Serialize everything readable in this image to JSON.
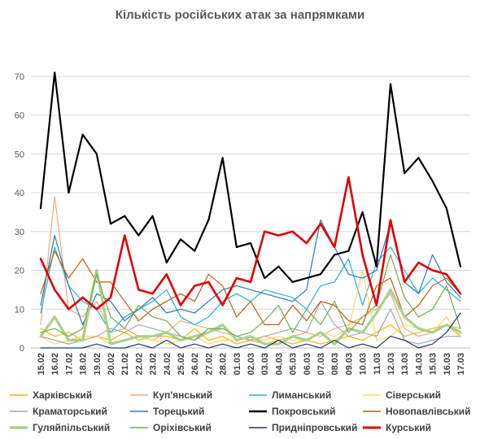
{
  "chart_data": {
    "type": "line",
    "title": "Кількість російських атак за напрямками",
    "xlabel": "",
    "ylabel": "",
    "ylim": [
      0,
      75
    ],
    "yticks": [
      0,
      10,
      20,
      30,
      40,
      50,
      60,
      70
    ],
    "grid": true,
    "legend": "bottom",
    "categories": [
      "15.02",
      "16.02",
      "17.02",
      "18.02",
      "19.02",
      "20.02",
      "21.02",
      "22.02",
      "23.02",
      "24.02",
      "25.02",
      "26.02",
      "27.02",
      "28.02",
      "01.03",
      "02.03",
      "03.03",
      "04.03",
      "05.03",
      "06.03",
      "07.03",
      "08.03",
      "09.03",
      "10.03",
      "11.03",
      "12.03",
      "13.03",
      "14.03",
      "15.03",
      "16.03",
      "17.03"
    ],
    "x_tick_labels": [
      "15.02",
      "16.02",
      "17.02",
      "18.02",
      "19.02",
      "20.02",
      "21.02",
      "22.02",
      "23.02",
      "24.02",
      "25.02",
      "26.02",
      "27.02",
      "28.02",
      "01.03",
      "02.03",
      "03.03",
      "04.03",
      "05.03",
      "06.03",
      "07.03",
      "08.03",
      "09.03",
      "10.03",
      "11.03",
      "12.03",
      "13.03",
      "14.03",
      "15.03",
      "16.03",
      "17.03"
    ],
    "series": [
      {
        "name": "Харківський",
        "color": "#f4b400",
        "width": 1.2,
        "values": [
          5,
          3,
          4,
          2,
          3,
          2,
          4,
          2,
          3,
          3,
          2,
          5,
          2,
          3,
          1,
          2,
          1,
          2,
          1,
          2,
          1,
          2,
          3,
          2,
          4,
          6,
          3,
          4,
          5,
          6,
          3
        ]
      },
      {
        "name": "Куп'янський",
        "color": "#f4a77a",
        "width": 1.2,
        "values": [
          6,
          39,
          10,
          8,
          12,
          4,
          5,
          3,
          2,
          4,
          7,
          6,
          5,
          4,
          3,
          2,
          3,
          2,
          3,
          4,
          3,
          5,
          6,
          8,
          10,
          14,
          5,
          3,
          4,
          6,
          5
        ]
      },
      {
        "name": "Лиманський",
        "color": "#1fb6d9",
        "width": 1.2,
        "values": [
          9,
          26,
          16,
          12,
          10,
          4,
          8,
          10,
          12,
          15,
          8,
          6,
          8,
          12,
          14,
          12,
          15,
          14,
          13,
          10,
          16,
          17,
          23,
          11,
          22,
          26,
          20,
          14,
          18,
          15,
          12
        ]
      },
      {
        "name": "Сіверський",
        "color": "#fdd85d",
        "width": 1.2,
        "values": [
          3,
          1,
          2,
          3,
          3,
          1,
          2,
          3,
          2,
          1,
          2,
          3,
          1,
          2,
          2,
          3,
          2,
          3,
          2,
          2,
          4,
          3,
          5,
          20,
          2,
          3,
          6,
          5,
          4,
          8,
          3
        ]
      },
      {
        "name": "Краматорський",
        "color": "#a6a6a6",
        "width": 1.2,
        "values": [
          3,
          2,
          1,
          2,
          3,
          5,
          4,
          6,
          5,
          4,
          3,
          2,
          4,
          5,
          3,
          2,
          3,
          4,
          5,
          4,
          12,
          6,
          3,
          4,
          3,
          10,
          2,
          1,
          2,
          3,
          3
        ]
      },
      {
        "name": "Торецький",
        "color": "#2e75b6",
        "width": 1.2,
        "values": [
          11,
          29,
          16,
          6,
          14,
          12,
          7,
          10,
          13,
          9,
          10,
          9,
          12,
          15,
          16,
          15,
          14,
          13,
          12,
          15,
          33,
          26,
          19,
          18,
          20,
          32,
          17,
          14,
          24,
          17,
          13
        ]
      },
      {
        "name": "Покровський",
        "color": "#000000",
        "width": 2.2,
        "values": [
          36,
          71,
          40,
          55,
          50,
          32,
          34,
          29,
          34,
          22,
          28,
          25,
          33,
          49,
          26,
          27,
          18,
          21,
          17,
          18,
          19,
          24,
          25,
          35,
          21,
          68,
          45,
          49,
          43,
          36,
          21
        ]
      },
      {
        "name": "Новопавлівський",
        "color": "#c55a11",
        "width": 1.2,
        "values": [
          14,
          25,
          18,
          23,
          17,
          17,
          12,
          7,
          10,
          12,
          14,
          12,
          19,
          16,
          8,
          12,
          6,
          6,
          11,
          7,
          12,
          11,
          7,
          6,
          16,
          18,
          8,
          11,
          16,
          18,
          14
        ]
      },
      {
        "name": "Гуляйпільський",
        "color": "#a9d18e",
        "width": 3.2,
        "values": [
          3,
          8,
          2,
          2,
          20,
          1,
          2,
          3,
          3,
          4,
          2,
          3,
          4,
          6,
          2,
          3,
          1,
          1,
          3,
          2,
          4,
          1,
          5,
          4,
          9,
          15,
          8,
          5,
          4,
          6,
          4
        ]
      },
      {
        "name": "Оріхівський",
        "color": "#70ad47",
        "width": 1.2,
        "values": [
          4,
          5,
          3,
          5,
          19,
          8,
          5,
          11,
          8,
          7,
          3,
          2,
          5,
          5,
          3,
          4,
          7,
          11,
          4,
          10,
          6,
          12,
          4,
          8,
          11,
          24,
          13,
          8,
          10,
          16,
          5
        ]
      },
      {
        "name": "Придніпровський",
        "color": "#1f3864",
        "width": 1.2,
        "values": [
          0,
          0,
          0,
          0,
          1,
          0,
          0,
          1,
          0,
          2,
          0,
          1,
          0,
          1,
          0,
          1,
          0,
          2,
          0,
          1,
          0,
          2,
          0,
          1,
          0,
          3,
          2,
          0,
          1,
          4,
          9
        ]
      },
      {
        "name": "Курський",
        "color": "#e00000",
        "width": 2.6,
        "values": [
          23,
          15,
          10,
          13,
          10,
          13,
          29,
          15,
          14,
          19,
          11,
          16,
          17,
          11,
          18,
          17,
          30,
          29,
          30,
          27,
          32,
          26,
          44,
          24,
          11,
          33,
          17,
          22,
          20,
          19,
          14
        ]
      }
    ]
  }
}
